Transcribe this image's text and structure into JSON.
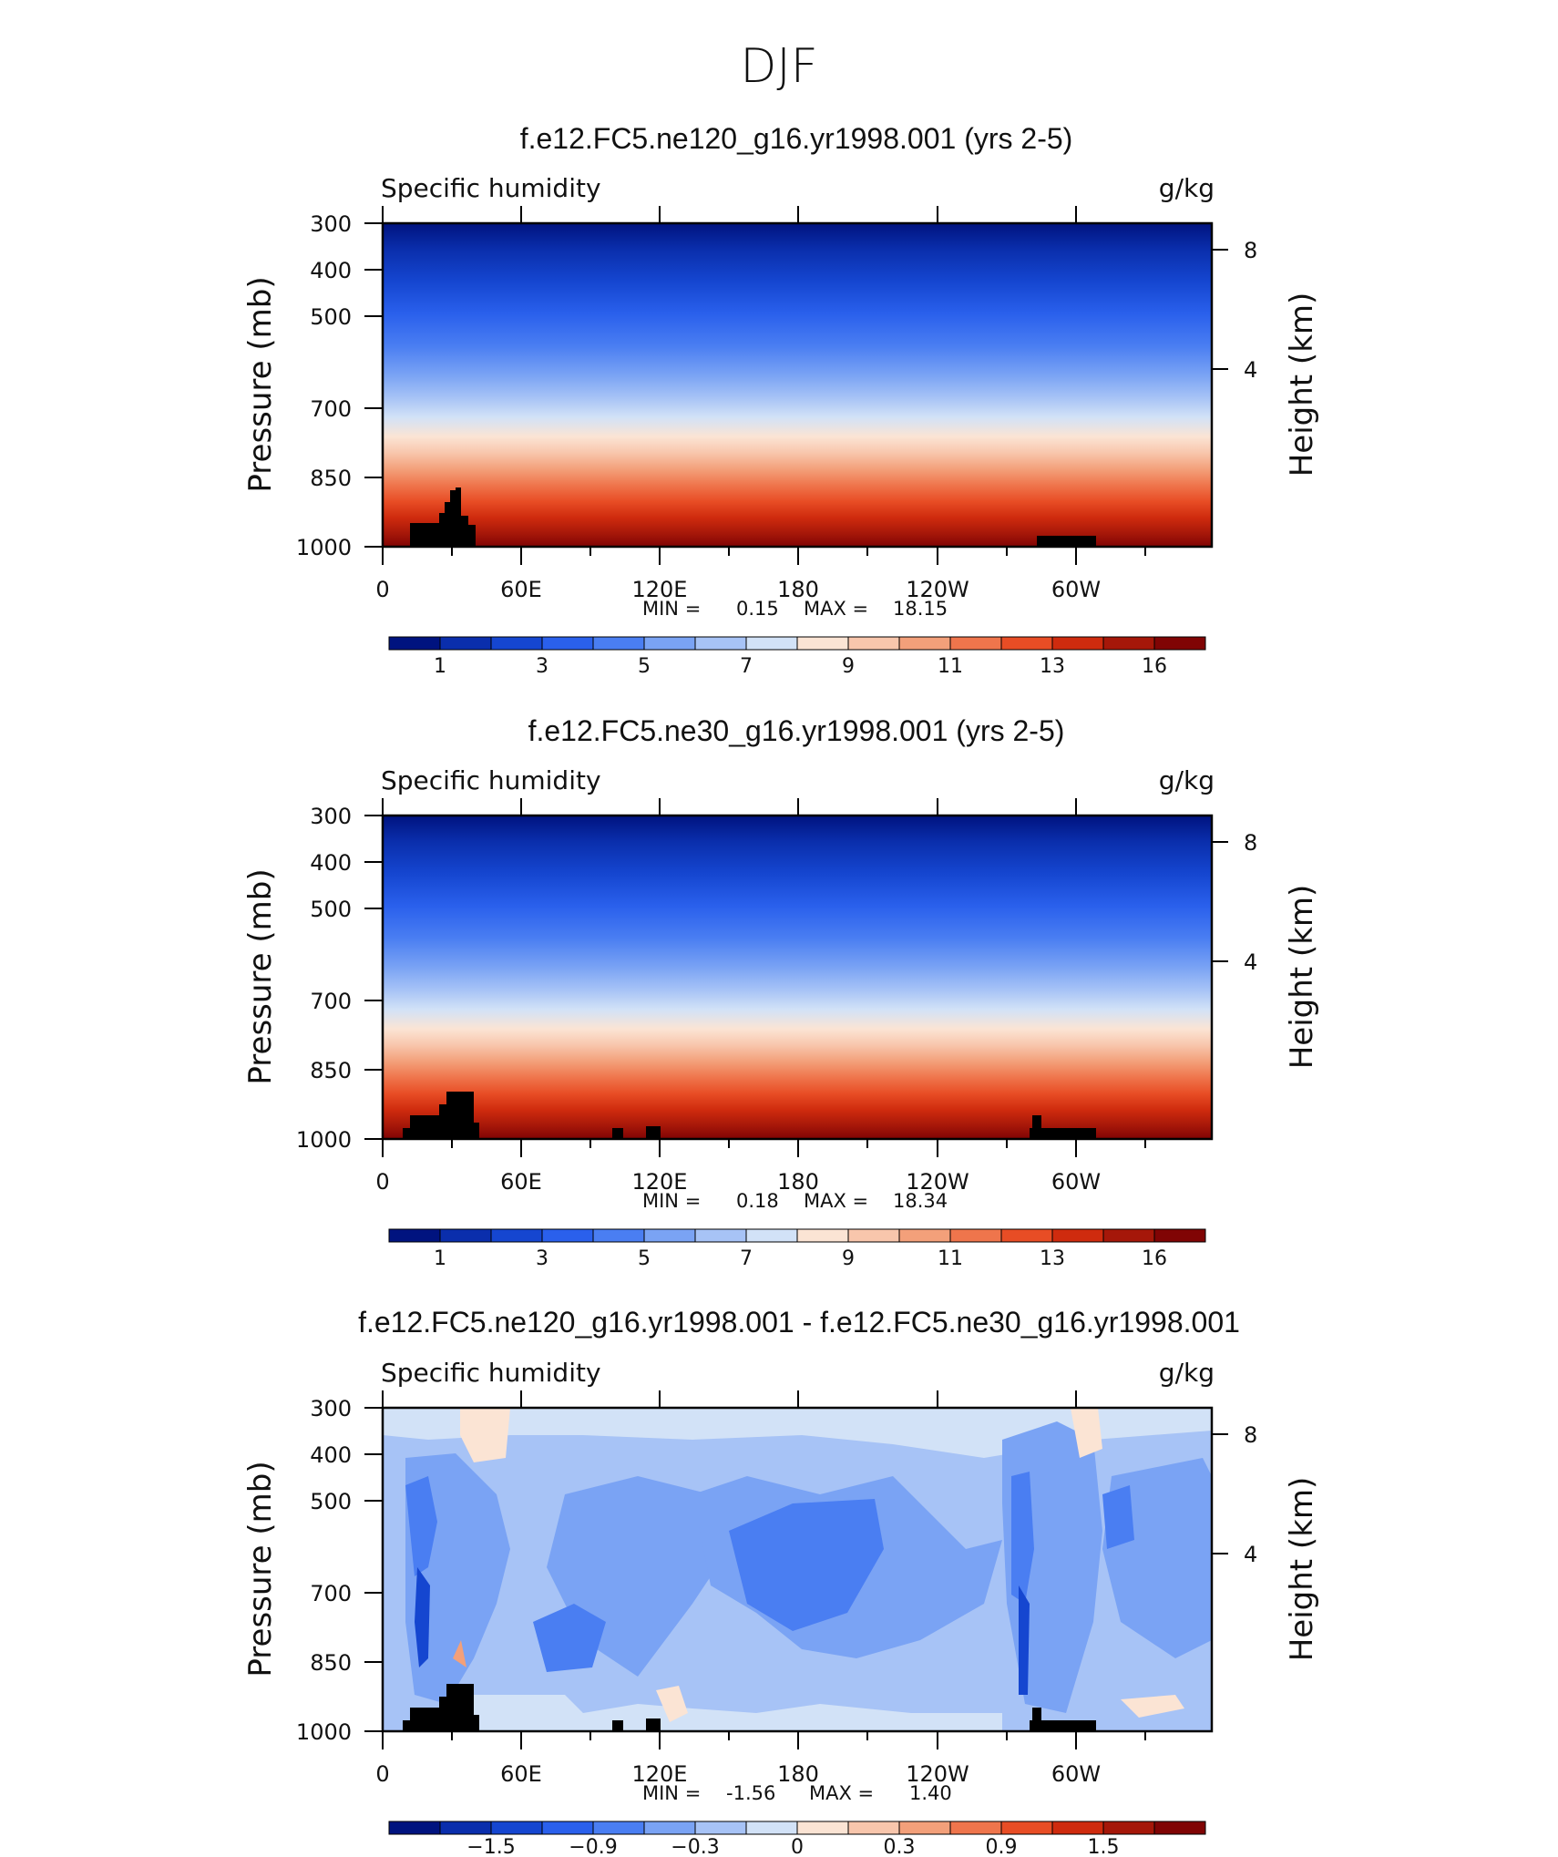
{
  "figure_title": "DJF",
  "chart_data": [
    {
      "type": "heatmap",
      "title": "f.e12.FC5.ne120_g16.yr1998.001 (yrs 2-5)",
      "left_label": "Specific humidity",
      "right_label": "g/kg",
      "ylabel": "Pressure (mb)",
      "ylabel_right": "Height (km)",
      "y_ticks": [
        "300",
        "400",
        "500",
        "700",
        "850",
        "1000"
      ],
      "y_right_ticks": [
        "8",
        "4"
      ],
      "x_ticks": [
        "0",
        "60E",
        "120E",
        "180",
        "120W",
        "60W"
      ],
      "ylim": [
        1000,
        300
      ],
      "log_pressure_axis": true,
      "min_label": "MIN =",
      "min_value": "0.15",
      "max_label": "MAX =",
      "max_value": "18.15",
      "colorbar_labels": [
        "1",
        "3",
        "5",
        "7",
        "9",
        "11",
        "13",
        "16"
      ],
      "colorbar_colors": [
        "#00137f",
        "#0a2eac",
        "#1546d0",
        "#2a60ec",
        "#4a7ef2",
        "#7aa3f4",
        "#a7c3f6",
        "#d2e2f7",
        "#fbe4d4",
        "#f8c6ac",
        "#f3a07a",
        "#ef754c",
        "#e84d25",
        "#cf2b0e",
        "#a51709",
        "#800404"
      ],
      "bottom_color_index": 14
    },
    {
      "type": "heatmap",
      "title": "f.e12.FC5.ne30_g16.yr1998.001 (yrs 2-5)",
      "left_label": "Specific humidity",
      "right_label": "g/kg",
      "ylabel": "Pressure (mb)",
      "ylabel_right": "Height (km)",
      "y_ticks": [
        "300",
        "400",
        "500",
        "700",
        "850",
        "1000"
      ],
      "y_right_ticks": [
        "8",
        "4"
      ],
      "x_ticks": [
        "0",
        "60E",
        "120E",
        "180",
        "120W",
        "60W"
      ],
      "ylim": [
        1000,
        300
      ],
      "log_pressure_axis": true,
      "min_label": "MIN =",
      "min_value": "0.18",
      "max_label": "MAX =",
      "max_value": "18.34",
      "colorbar_labels": [
        "1",
        "3",
        "5",
        "7",
        "9",
        "11",
        "13",
        "16"
      ],
      "colorbar_colors": [
        "#00137f",
        "#0a2eac",
        "#1546d0",
        "#2a60ec",
        "#4a7ef2",
        "#7aa3f4",
        "#a7c3f6",
        "#d2e2f7",
        "#fbe4d4",
        "#f8c6ac",
        "#f3a07a",
        "#ef754c",
        "#e84d25",
        "#cf2b0e",
        "#a51709",
        "#800404"
      ],
      "bottom_color_index": 14
    },
    {
      "type": "heatmap",
      "title": "f.e12.FC5.ne120_g16.yr1998.001 - f.e12.FC5.ne30_g16.yr1998.001",
      "left_label": "Specific humidity",
      "right_label": "g/kg",
      "ylabel": "Pressure (mb)",
      "ylabel_right": "Height (km)",
      "y_ticks": [
        "300",
        "400",
        "500",
        "700",
        "850",
        "1000"
      ],
      "y_right_ticks": [
        "8",
        "4"
      ],
      "x_ticks": [
        "0",
        "60E",
        "120E",
        "180",
        "120W",
        "60W"
      ],
      "ylim": [
        1000,
        300
      ],
      "log_pressure_axis": true,
      "min_label": "MIN =",
      "min_value": "-1.56",
      "max_label": "MAX =",
      "max_value": "1.40",
      "colorbar_labels": [
        "−1.5",
        "−0.9",
        "−0.3",
        "0",
        "0.3",
        "0.9",
        "1.5"
      ],
      "colorbar_colors": [
        "#00137f",
        "#0a2eac",
        "#1546d0",
        "#2a60ec",
        "#4a7ef2",
        "#7aa3f4",
        "#a7c3f6",
        "#d2e2f7",
        "#fbe4d4",
        "#f8c6ac",
        "#f3a07a",
        "#ef754c",
        "#e84d25",
        "#cf2b0e",
        "#a51709",
        "#800404"
      ]
    }
  ]
}
